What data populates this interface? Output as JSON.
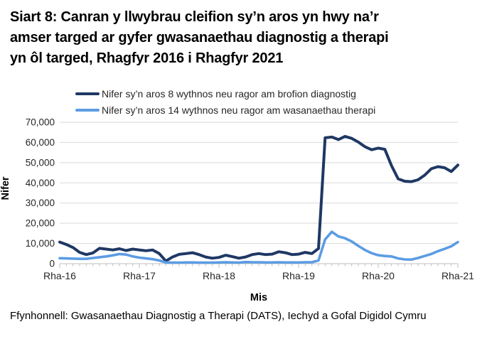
{
  "page": {
    "title_lines": [
      "Siart 8: Canran y llwybrau cleifion sy’n aros yn hwy na’r",
      "amser targed ar gyfer gwasanaethau diagnostig a therapi",
      "yn ôl targed, Rhagfyr 2016 i Rhagfyr 2021"
    ],
    "source_note": "Ffynhonnell: Gwasanaethau Diagnostig a Therapi (DATS), Iechyd a Gofal Digidol Cymru"
  },
  "chart_data": {
    "type": "line",
    "title": "Siart 8: Canran y llwybrau cleifion sy’n aros yn hwy na’r amser targed ar gyfer gwasanaethau diagnostig a therapi yn ôl targed, Rhagfyr 2016 i Rhagfyr 2021",
    "xlabel": "Mis",
    "ylabel": "Nifer",
    "ylim": [
      0,
      70000
    ],
    "y_tick_step": 10000,
    "y_tick_labels": [
      "0",
      "10,000",
      "20,000",
      "30,000",
      "40,000",
      "50,000",
      "60,000",
      "70,000"
    ],
    "x_tick_labels": [
      "Rha-16",
      "Rha-17",
      "Rha-18",
      "Rha-19",
      "Rha-20",
      "Rha-21"
    ],
    "x_tick_month_index": [
      0,
      12,
      24,
      36,
      48,
      60
    ],
    "x_unit": "monthly from Rhagfyr 2016 to Rhagfyr 2021 (61 points)",
    "grid": true,
    "legend_position": "top",
    "grid_color": "#D9D9D9",
    "axis_color": "#BFBFBF",
    "tick_text_color": "#262626",
    "series": [
      {
        "name": "Nifer sy’n aros 8 wythnos neu ragor am brofion diagnostig",
        "color": "#1F3864",
        "stroke_width": 4,
        "values": [
          10700,
          9500,
          8000,
          5600,
          4500,
          5300,
          7600,
          7200,
          6800,
          7400,
          6500,
          7200,
          6800,
          6400,
          6800,
          5000,
          1300,
          3300,
          4600,
          5000,
          5400,
          4500,
          3300,
          2700,
          3100,
          4200,
          3500,
          2700,
          3300,
          4500,
          5000,
          4500,
          4700,
          5900,
          5400,
          4500,
          4700,
          5600,
          5000,
          7500,
          62300,
          62700,
          61400,
          63000,
          62000,
          60200,
          57900,
          56400,
          57200,
          56600,
          48500,
          42000,
          40800,
          40600,
          41500,
          43800,
          47000,
          48000,
          47500,
          45600,
          48800
        ]
      },
      {
        "name": "Nifer sy’n aros 14 wythnos neu ragor am wasanaethau therapi",
        "color": "#5C9CE3",
        "stroke_width": 3.6,
        "values": [
          2700,
          2600,
          2500,
          2400,
          2400,
          2800,
          3200,
          3600,
          4100,
          4800,
          4500,
          3600,
          3000,
          2600,
          2200,
          1600,
          600,
          500,
          500,
          600,
          600,
          500,
          500,
          500,
          600,
          700,
          600,
          500,
          800,
          700,
          700,
          600,
          600,
          700,
          600,
          600,
          600,
          700,
          700,
          1600,
          12000,
          15800,
          13500,
          12600,
          11000,
          8800,
          6800,
          5200,
          4200,
          3800,
          3600,
          2600,
          2100,
          2000,
          2800,
          3800,
          4800,
          6200,
          7300,
          8600,
          10700
        ]
      }
    ]
  }
}
